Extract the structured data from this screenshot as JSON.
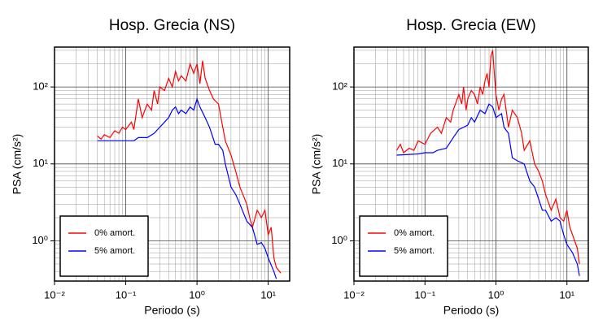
{
  "chart_data": [
    {
      "type": "line",
      "title": "Hosp. Grecia (NS)",
      "x_label": "Periodo (s)",
      "y_label": "PSA (cm/s²)",
      "log_x": true,
      "log_y": true,
      "grid": true,
      "minor_grid": true,
      "legend": "lower left",
      "xlim": [
        0.01,
        20
      ],
      "ylim": [
        0.3,
        330
      ],
      "xticks": [
        {
          "value": 0.01,
          "label": "10⁻²"
        },
        {
          "value": 0.1,
          "label": "10⁻¹"
        },
        {
          "value": 1,
          "label": "10⁰"
        },
        {
          "value": 10,
          "label": "10¹"
        }
      ],
      "yticks": [
        {
          "value": 1,
          "label": "10⁰"
        },
        {
          "value": 10,
          "label": "10¹"
        },
        {
          "value": 100,
          "label": "10²"
        }
      ],
      "series": [
        {
          "name": "0% amort.",
          "color": "#ff0000",
          "x": [
            0.04,
            0.045,
            0.05,
            0.06,
            0.07,
            0.08,
            0.09,
            0.1,
            0.12,
            0.13,
            0.15,
            0.17,
            0.2,
            0.23,
            0.25,
            0.28,
            0.3,
            0.35,
            0.4,
            0.45,
            0.5,
            0.55,
            0.6,
            0.7,
            0.8,
            0.9,
            1.0,
            1.1,
            1.2,
            1.3,
            1.5,
            1.7,
            2.0,
            2.3,
            2.5,
            3.0,
            3.5,
            4.0,
            5,
            5.5,
            6,
            7,
            8,
            9,
            10,
            11,
            12,
            13,
            15
          ],
          "values": [
            23,
            21,
            24,
            22,
            27,
            25,
            30,
            28,
            35,
            28,
            70,
            40,
            60,
            50,
            90,
            60,
            100,
            90,
            130,
            100,
            160,
            120,
            140,
            120,
            200,
            150,
            200,
            110,
            220,
            130,
            90,
            70,
            60,
            30,
            20,
            13,
            8,
            5,
            3,
            2,
            1.5,
            2.5,
            2,
            2.5,
            1.2,
            1.5,
            0.6,
            0.45,
            0.38
          ]
        },
        {
          "name": "5% amort.",
          "color": "#0000ff",
          "x": [
            0.04,
            0.1,
            0.13,
            0.15,
            0.2,
            0.25,
            0.3,
            0.35,
            0.4,
            0.45,
            0.5,
            0.55,
            0.6,
            0.7,
            0.8,
            0.9,
            1.0,
            1.1,
            1.3,
            1.5,
            1.8,
            2.0,
            2.3,
            2.5,
            3.0,
            3.5,
            4,
            5,
            6,
            7,
            8,
            9,
            10,
            12,
            13
          ],
          "values": [
            20,
            20,
            20,
            22,
            22,
            25,
            30,
            35,
            40,
            50,
            55,
            45,
            50,
            45,
            55,
            50,
            70,
            55,
            40,
            30,
            18,
            18,
            15,
            10,
            5,
            4,
            3,
            1.8,
            1.5,
            0.9,
            0.95,
            0.8,
            0.6,
            0.4,
            0.32
          ]
        }
      ]
    },
    {
      "type": "line",
      "title": "Hosp. Grecia (EW)",
      "x_label": "Periodo (s)",
      "y_label": "PSA (cm/s²)",
      "log_x": true,
      "log_y": true,
      "grid": true,
      "minor_grid": true,
      "legend": "lower left",
      "xlim": [
        0.01,
        20
      ],
      "ylim": [
        0.3,
        330
      ],
      "xticks": [
        {
          "value": 0.01,
          "label": "10⁻²"
        },
        {
          "value": 0.1,
          "label": "10⁻¹"
        },
        {
          "value": 1,
          "label": "10⁰"
        },
        {
          "value": 10,
          "label": "10¹"
        }
      ],
      "yticks": [
        {
          "value": 1,
          "label": "10⁰"
        },
        {
          "value": 10,
          "label": "10¹"
        },
        {
          "value": 100,
          "label": "10²"
        }
      ],
      "series": [
        {
          "name": "0% amort.",
          "color": "#ff0000",
          "x": [
            0.04,
            0.045,
            0.05,
            0.06,
            0.07,
            0.08,
            0.1,
            0.12,
            0.15,
            0.17,
            0.2,
            0.23,
            0.25,
            0.3,
            0.33,
            0.35,
            0.38,
            0.4,
            0.45,
            0.5,
            0.55,
            0.6,
            0.65,
            0.7,
            0.75,
            0.8,
            0.85,
            0.9,
            0.95,
            1.0,
            1.1,
            1.2,
            1.3,
            1.5,
            1.7,
            2.0,
            2.3,
            2.5,
            3.0,
            3.5,
            4,
            4.5,
            5,
            6,
            7,
            8,
            9,
            10,
            11,
            12,
            14,
            15
          ],
          "values": [
            15,
            18,
            14,
            16,
            15,
            20,
            18,
            25,
            30,
            25,
            40,
            35,
            50,
            80,
            60,
            100,
            50,
            70,
            90,
            80,
            60,
            100,
            80,
            120,
            150,
            100,
            250,
            300,
            150,
            80,
            50,
            70,
            80,
            30,
            50,
            40,
            25,
            15,
            20,
            10,
            8,
            6,
            4,
            2.5,
            3.5,
            2,
            1.8,
            2.5,
            1.5,
            1.2,
            0.8,
            0.5
          ]
        },
        {
          "name": "5% amort.",
          "color": "#0000ff",
          "x": [
            0.04,
            0.08,
            0.1,
            0.13,
            0.15,
            0.2,
            0.25,
            0.3,
            0.35,
            0.4,
            0.45,
            0.5,
            0.6,
            0.7,
            0.8,
            0.9,
            1.0,
            1.2,
            1.3,
            1.5,
            1.7,
            2.0,
            2.5,
            3,
            3.5,
            4,
            4.5,
            5,
            6,
            7,
            8,
            9,
            10,
            12,
            14,
            15
          ],
          "values": [
            13,
            13.5,
            14,
            14,
            15,
            16,
            22,
            28,
            30,
            32,
            40,
            35,
            50,
            45,
            60,
            55,
            40,
            45,
            30,
            25,
            12,
            11,
            10,
            6,
            5,
            3.5,
            2.5,
            2.5,
            1.8,
            2,
            1.8,
            1.2,
            0.9,
            0.7,
            0.5,
            0.35
          ]
        }
      ]
    }
  ]
}
